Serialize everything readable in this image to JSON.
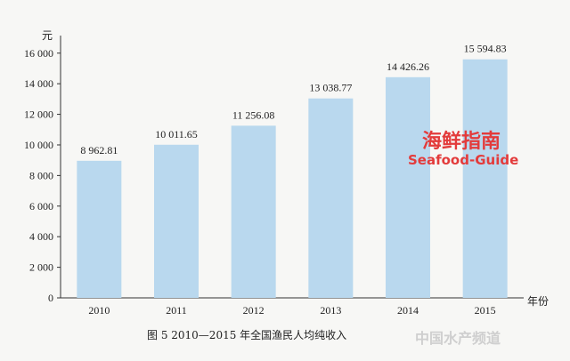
{
  "chart_data": {
    "type": "bar",
    "categories": [
      "2010",
      "2011",
      "2012",
      "2013",
      "2014",
      "2015"
    ],
    "values": [
      8962.81,
      10011.65,
      11256.08,
      13038.77,
      14426.26,
      15594.83
    ],
    "value_labels": [
      "8 962.81",
      "10 011.65",
      "11 256.08",
      "13 038.77",
      "14 426.26",
      "15 594.83"
    ],
    "y_ticks": [
      0,
      2000,
      4000,
      6000,
      8000,
      10000,
      12000,
      14000,
      16000
    ],
    "y_tick_labels": [
      "0",
      "2 000",
      "4 000",
      "6 000",
      "8 000",
      "10 000",
      "12 000",
      "14 000",
      "16 000"
    ],
    "ylim": [
      0,
      16800
    ],
    "ylabel": "元",
    "xlabel": "年份",
    "title": "图 5    2010—2015 年全国渔民人均纯收入",
    "grid": false,
    "bar_color": "#b9d8ee"
  },
  "watermark": {
    "cn": "海鲜指南",
    "en": "Seafood-Guide",
    "corner": "中国水产频道",
    "color": "#e33b3b"
  }
}
